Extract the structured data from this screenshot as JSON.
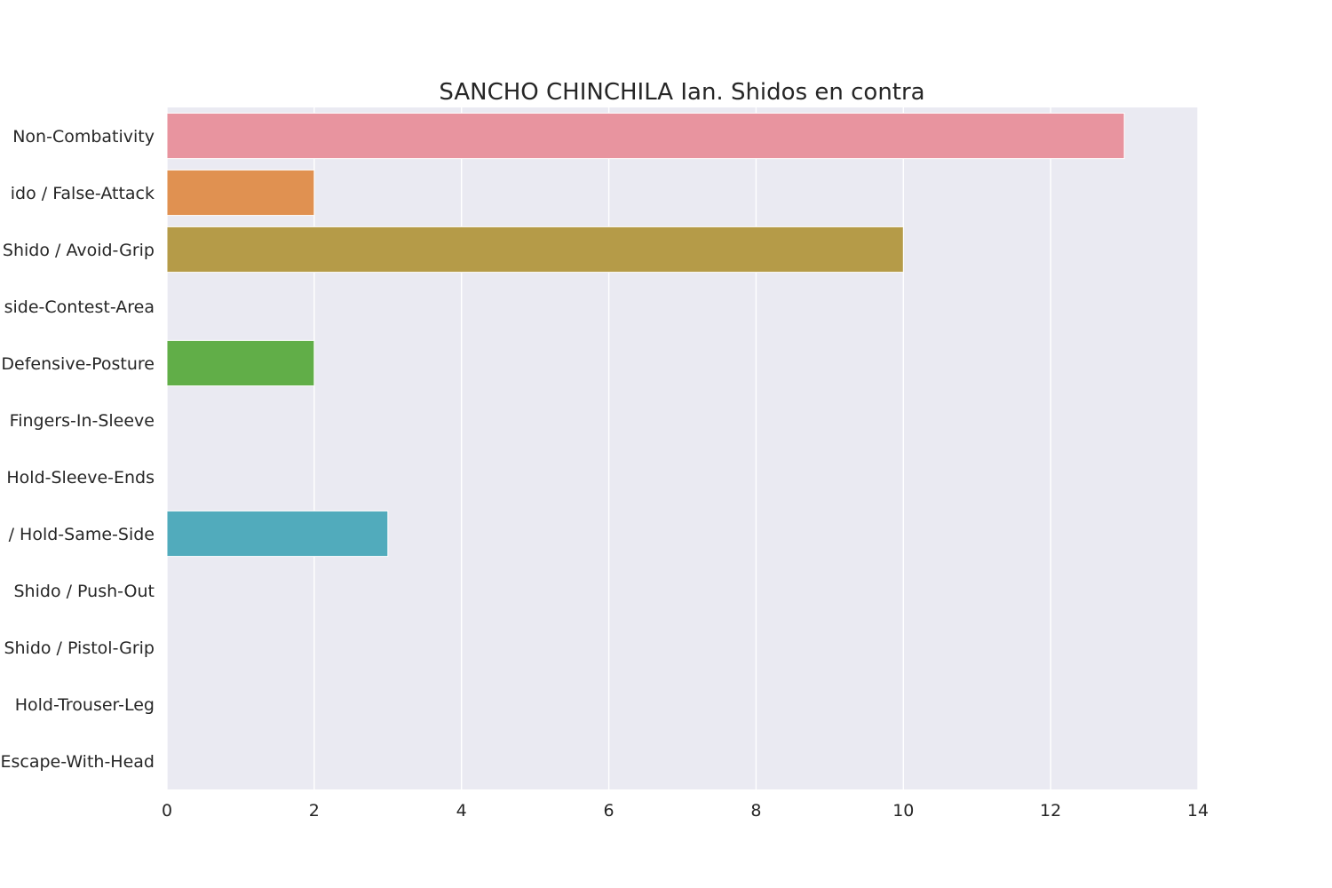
{
  "chart_data": {
    "type": "bar",
    "orientation": "horizontal",
    "title": "SANCHO CHINCHILA Ian. Shidos en contra",
    "xlabel": "",
    "ylabel": "",
    "xlim": [
      0,
      14
    ],
    "xticks": [
      0,
      2,
      4,
      6,
      8,
      10,
      12,
      14
    ],
    "grid": true,
    "background": "#EAEAF2",
    "categories": [
      "Non-Combativity",
      "ido / False-Attack",
      "Shido / Avoid-Grip",
      "side-Contest-Area",
      "Defensive-Posture",
      "Fingers-In-Sleeve",
      "Hold-Sleeve-Ends",
      "/ Hold-Same-Side",
      "Shido / Push-Out",
      "Shido / Pistol-Grip",
      "Hold-Trouser-Leg",
      "Escape-With-Head"
    ],
    "values": [
      13,
      2,
      10,
      0,
      2,
      0,
      0,
      3,
      0,
      0,
      0,
      0
    ],
    "colors": [
      "#E8949F",
      "#E09151",
      "#B59B48",
      "#9BA840",
      "#61AE48",
      "#55AE8E",
      "#57AAA3",
      "#51ABBC",
      "#5BA6D6",
      "#A89BDD",
      "#D48BD8",
      "#E78BC1"
    ]
  }
}
